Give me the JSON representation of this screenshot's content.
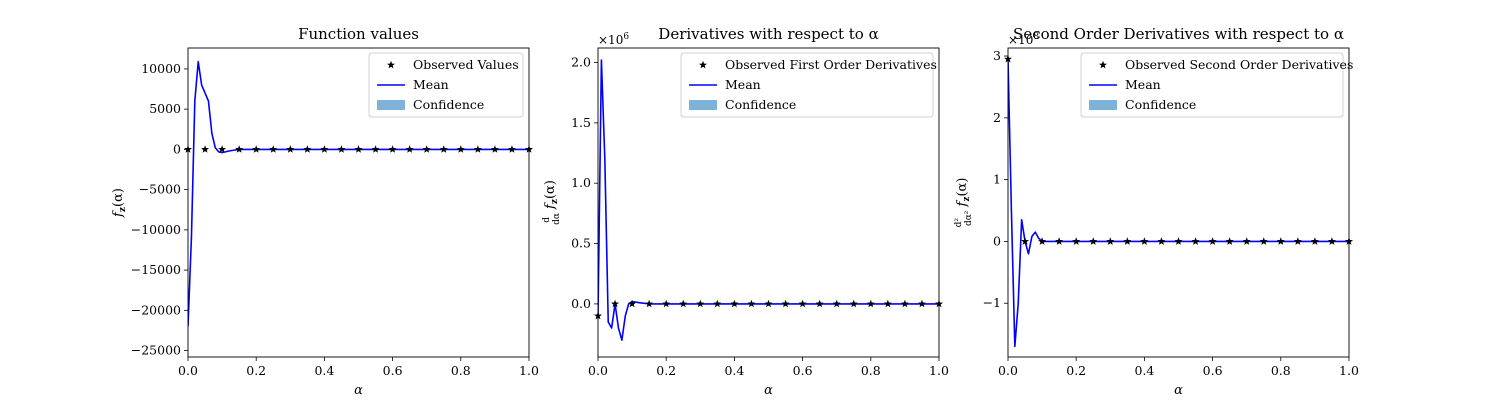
{
  "chart_data": [
    {
      "type": "line",
      "title": "Function values",
      "xlabel": "α",
      "ylabel": "f_z(α)",
      "ylabel_parts": {
        "main": "f",
        "sub": "z",
        "arg": "(α)"
      },
      "xlim": [
        0,
        1
      ],
      "ylim": [
        -25800,
        12600
      ],
      "x_ticks": [
        0,
        0.2,
        0.4,
        0.6,
        0.8,
        1.0
      ],
      "x_tick_labels": [
        "0.0",
        "0.2",
        "0.4",
        "0.6",
        "0.8",
        "1.0"
      ],
      "y_ticks": [
        -25000,
        -20000,
        -15000,
        -10000,
        -5000,
        0,
        5000,
        10000
      ],
      "y_tick_labels": [
        "−25000",
        "−20000",
        "−15000",
        "−10000",
        "−5000",
        "0",
        "5000",
        "10000"
      ],
      "multiplier": "",
      "legend_position": "top-right",
      "legend": [
        "Observed Values",
        "Mean",
        "Confidence"
      ],
      "series": [
        {
          "name": "Mean",
          "color": "#0000ff",
          "x": [
            0,
            0.01,
            0.02,
            0.03,
            0.04,
            0.05,
            0.06,
            0.07,
            0.08,
            0.09,
            0.1,
            0.12,
            0.15,
            0.2,
            0.3,
            0.4,
            0.5,
            0.6,
            0.7,
            0.8,
            0.9,
            1.0
          ],
          "y": [
            -22000,
            -11000,
            6000,
            10900,
            8000,
            7000,
            6000,
            2000,
            200,
            -300,
            -400,
            -200,
            0,
            0,
            0,
            0,
            0,
            0,
            0,
            0,
            0,
            0
          ]
        },
        {
          "name": "Observed Values",
          "color": "#000000",
          "x": [
            0,
            0.05,
            0.1,
            0.15,
            0.2,
            0.25,
            0.3,
            0.35,
            0.4,
            0.45,
            0.5,
            0.55,
            0.6,
            0.65,
            0.7,
            0.75,
            0.8,
            0.85,
            0.9,
            0.95,
            1.0
          ],
          "y": [
            0,
            0,
            0,
            0,
            0,
            0,
            0,
            0,
            0,
            0,
            0,
            0,
            0,
            0,
            0,
            0,
            0,
            0,
            0,
            0,
            0
          ]
        }
      ]
    },
    {
      "type": "line",
      "title": "Derivatives with respect to α",
      "xlabel": "α",
      "ylabel": "d/dα f_z(α)",
      "ylabel_parts": {
        "main": "f",
        "sub": "z",
        "arg": "(α)",
        "frac_num": "d",
        "frac_den": "dα"
      },
      "xlim": [
        0,
        1
      ],
      "ylim": [
        -0.44,
        2.12
      ],
      "x_ticks": [
        0,
        0.2,
        0.4,
        0.6,
        0.8,
        1.0
      ],
      "x_tick_labels": [
        "0.0",
        "0.2",
        "0.4",
        "0.6",
        "0.8",
        "1.0"
      ],
      "y_ticks": [
        0,
        0.5,
        1.0,
        1.5,
        2.0
      ],
      "y_tick_labels": [
        "0.0",
        "0.5",
        "1.0",
        "1.5",
        "2.0"
      ],
      "multiplier": "×10",
      "multiplier_exp": "6",
      "legend_position": "top-right",
      "legend": [
        "Observed First Order Derivatives",
        "Mean",
        "Confidence"
      ],
      "series": [
        {
          "name": "Mean",
          "color": "#0000ff",
          "x": [
            0,
            0.01,
            0.02,
            0.03,
            0.04,
            0.05,
            0.06,
            0.07,
            0.08,
            0.09,
            0.1,
            0.12,
            0.15,
            0.2,
            0.3,
            0.4,
            0.5,
            0.6,
            0.7,
            0.8,
            0.9,
            1.0
          ],
          "y": [
            -0.1,
            2.02,
            1.2,
            -0.15,
            -0.2,
            0.0,
            -0.2,
            -0.3,
            -0.1,
            0.0,
            0.02,
            0.01,
            0.0,
            0.0,
            0.0,
            0.0,
            0.0,
            0.0,
            0.0,
            0.0,
            0.0,
            0.0
          ]
        },
        {
          "name": "Observed First Order Derivatives",
          "color": "#000000",
          "x": [
            0,
            0.05,
            0.1,
            0.15,
            0.2,
            0.25,
            0.3,
            0.35,
            0.4,
            0.45,
            0.5,
            0.55,
            0.6,
            0.65,
            0.7,
            0.75,
            0.8,
            0.85,
            0.9,
            0.95,
            1.0
          ],
          "y": [
            -0.1,
            0,
            0,
            0,
            0,
            0,
            0,
            0,
            0,
            0,
            0,
            0,
            0,
            0,
            0,
            0,
            0,
            0,
            0,
            0,
            0
          ]
        }
      ]
    },
    {
      "type": "line",
      "title": "Second Order Derivatives with respect to α",
      "xlabel": "α",
      "ylabel": "d²/dα² f_z(α)",
      "ylabel_parts": {
        "main": "f",
        "sub": "z",
        "arg": "(α)",
        "frac_num": "d²",
        "frac_den": "dα²"
      },
      "xlim": [
        0,
        1
      ],
      "ylim": [
        -1.87,
        3.13
      ],
      "x_ticks": [
        0,
        0.2,
        0.4,
        0.6,
        0.8,
        1.0
      ],
      "x_tick_labels": [
        "0.0",
        "0.2",
        "0.4",
        "0.6",
        "0.8",
        "1.0"
      ],
      "y_ticks": [
        -1,
        0,
        1,
        2,
        3
      ],
      "y_tick_labels": [
        "−1",
        "0",
        "1",
        "2",
        "3"
      ],
      "multiplier": "×10",
      "multiplier_exp": "8",
      "legend_position": "top-right",
      "legend": [
        "Observed Second Order Derivatives",
        "Mean",
        "Confidence"
      ],
      "series": [
        {
          "name": "Mean",
          "color": "#0000ff",
          "x": [
            0,
            0.01,
            0.02,
            0.03,
            0.04,
            0.05,
            0.06,
            0.07,
            0.08,
            0.09,
            0.1,
            0.12,
            0.15,
            0.2,
            0.3,
            0.4,
            0.5,
            0.6,
            0.7,
            0.8,
            0.9,
            1.0
          ],
          "y": [
            2.95,
            0.5,
            -1.7,
            -1.0,
            0.35,
            0.0,
            -0.2,
            0.08,
            0.15,
            0.05,
            0.0,
            0.0,
            0.0,
            0.0,
            0.0,
            0.0,
            0.0,
            0.0,
            0.0,
            0.0,
            0.0,
            0.0
          ]
        },
        {
          "name": "Observed Second Order Derivatives",
          "color": "#000000",
          "x": [
            0,
            0.05,
            0.1,
            0.15,
            0.2,
            0.25,
            0.3,
            0.35,
            0.4,
            0.45,
            0.5,
            0.55,
            0.6,
            0.65,
            0.7,
            0.75,
            0.8,
            0.85,
            0.9,
            0.95,
            1.0
          ],
          "y": [
            2.95,
            0,
            0,
            0,
            0,
            0,
            0,
            0,
            0,
            0,
            0,
            0,
            0,
            0,
            0,
            0,
            0,
            0,
            0,
            0,
            0
          ]
        }
      ]
    }
  ],
  "colors": {
    "mean": "#0000ff",
    "observed": "#000000",
    "confidence": "#7fb2d8"
  },
  "icons": {
    "observed_marker": "star-icon"
  }
}
